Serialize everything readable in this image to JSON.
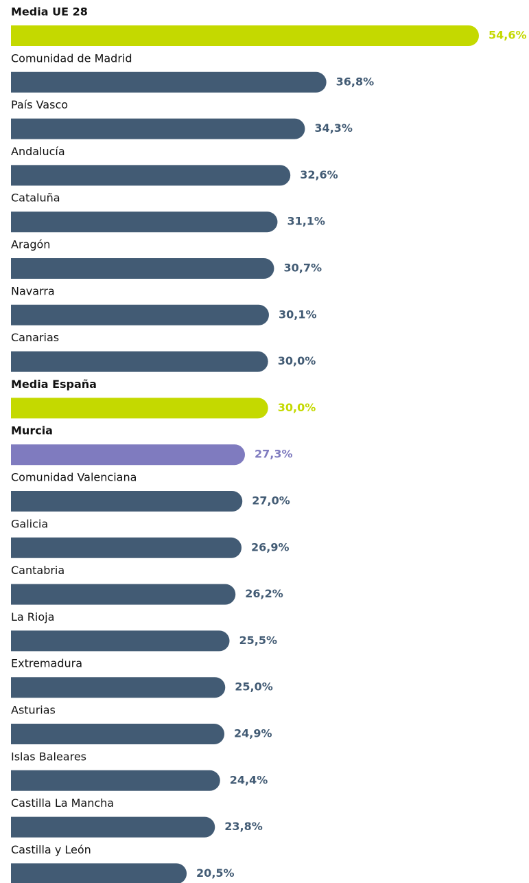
{
  "chart_data": {
    "type": "bar",
    "orientation": "horizontal",
    "categories": [
      "Media UE 28",
      "Comunidad de Madrid",
      "País Vasco",
      "Andalucía",
      "Cataluña",
      "Aragón",
      "Navarra",
      "Canarias",
      "Media España",
      "Murcia",
      "Comunidad Valenciana",
      "Galicia",
      "Cantabria",
      "La Rioja",
      "Extremadura",
      "Asturias",
      "Islas Baleares",
      "Castilla La Mancha",
      "Castilla y León"
    ],
    "values": [
      54.6,
      36.8,
      34.3,
      32.6,
      31.1,
      30.7,
      30.1,
      30.0,
      30.0,
      27.3,
      27.0,
      26.9,
      26.2,
      25.5,
      25.0,
      24.9,
      24.4,
      23.8,
      20.5
    ],
    "value_labels": [
      "54,6%",
      "36,8%",
      "34,3%",
      "32,6%",
      "31,1%",
      "30,7%",
      "30,1%",
      "30,0%",
      "30,0%",
      "27,3%",
      "27,0%",
      "26,9%",
      "26,2%",
      "25,5%",
      "25,0%",
      "24,9%",
      "24,4%",
      "23,8%",
      "20,5%"
    ],
    "color": "#425b74",
    "colors": [
      "#c4d900",
      "#425b74",
      "#425b74",
      "#425b74",
      "#425b74",
      "#425b74",
      "#425b74",
      "#425b74",
      "#c4d900",
      "#7f7bbf",
      "#425b74",
      "#425b74",
      "#425b74",
      "#425b74",
      "#425b74",
      "#425b74",
      "#425b74",
      "#425b74",
      "#425b74"
    ]
  }
}
